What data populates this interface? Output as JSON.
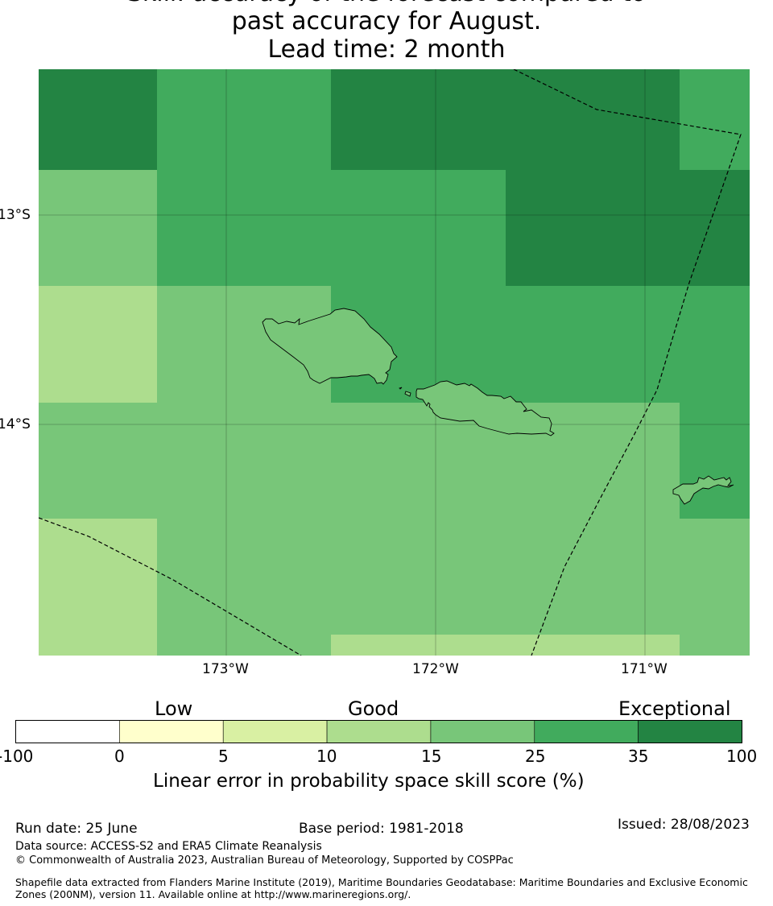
{
  "title": {
    "line1": "Skill: accuracy of the forecast compared to",
    "line2": "past accuracy for August.",
    "line3": "Lead time: 2 month"
  },
  "map": {
    "lat_labels": [
      "13°S",
      "14°S"
    ],
    "lon_labels": [
      "173°W",
      "172°W",
      "171°W"
    ],
    "grid_skill_categories": [
      [
        35,
        25,
        35,
        35,
        35,
        25
      ],
      [
        15,
        25,
        25,
        35,
        35,
        35
      ],
      [
        10,
        15,
        25,
        25,
        25,
        25
      ],
      [
        15,
        15,
        15,
        15,
        15,
        25
      ],
      [
        10,
        15,
        15,
        15,
        15,
        15
      ],
      [
        10,
        15,
        10,
        10,
        15,
        15
      ]
    ],
    "islands": [
      "Savai'i",
      "Upolu",
      "Tutuila"
    ]
  },
  "colorbar": {
    "category_labels": [
      "Low",
      "Good",
      "Exceptional"
    ],
    "ticks": [
      "-100",
      "0",
      "5",
      "10",
      "15",
      "25",
      "35",
      "100"
    ],
    "colors": [
      "#ffffff",
      "#ffffcc",
      "#d9f0a3",
      "#addd8e",
      "#78c679",
      "#41ab5d",
      "#238443"
    ],
    "label": "Linear error in probability space skill score (%)"
  },
  "footer": {
    "run_date": "Run date: 25 June",
    "base_period": "Base period: 1981-2018",
    "issued": "Issued: 28/08/2023",
    "data_source": "Data source: ACCESS-S2 and ERA5 Climate Reanalysis",
    "copyright": "© Commonwealth of Australia 2023, Australian Bureau of Meteorology, Supported by COSPPac",
    "shapefile": "Shapefile data extracted from Flanders Marine Institute (2019), Maritime Boundaries Geodatabase: Maritime Boundaries and Exclusive Economic Zones (200NM), version 11. Available online at http://www.marineregions.org/."
  }
}
